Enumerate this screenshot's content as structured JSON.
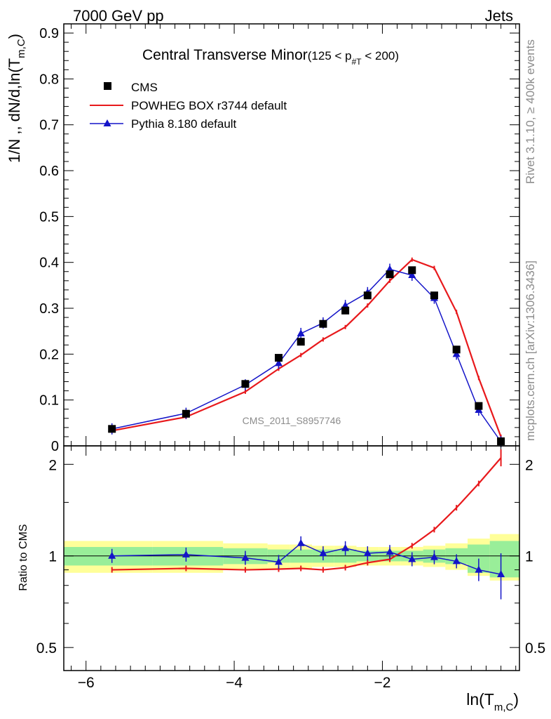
{
  "header": {
    "left": "7000 GeV pp",
    "right": "Jets"
  },
  "side_labels": {
    "rivet": "Rivet 3.1.10, ≥ 400k events",
    "mcplots": "mcplots.cern.ch [arXiv:1306.3436]"
  },
  "watermark": "CMS_2011_S8957746",
  "colors": {
    "cms": "#000000",
    "powheg": "#e8191c",
    "pythia": "#1414c8",
    "band_inner": "#99ee99",
    "band_outer": "#ffff99"
  },
  "chart_data": [
    {
      "type": "line",
      "panel": "main",
      "title": "Central Transverse Minor",
      "title_sub": "(125 < p",
      "title_sub_sub": "#T",
      "title_sub_end": " < 200)",
      "ylabel": "1/N ,, dN/d,ln(T",
      "ylabel_sub": "m,C",
      "ylabel_end": ")",
      "xlim": [
        -6.3,
        -0.15
      ],
      "ylim": [
        0,
        0.92
      ],
      "yticks": [
        "0",
        "0.1",
        "0.2",
        "0.3",
        "0.4",
        "0.5",
        "0.6",
        "0.7",
        "0.8",
        "0.9"
      ],
      "legend_position": "top-left",
      "x": [
        -5.65,
        -4.65,
        -3.85,
        -3.4,
        -3.1,
        -2.8,
        -2.5,
        -2.2,
        -1.9,
        -1.6,
        -1.3,
        -1.0,
        -0.7,
        -0.4
      ],
      "series": [
        {
          "name": "CMS",
          "marker": "square",
          "values": [
            0.037,
            0.07,
            0.135,
            0.192,
            0.227,
            0.266,
            0.295,
            0.328,
            0.374,
            0.383,
            0.328,
            0.21,
            0.087,
            0.01
          ]
        },
        {
          "name": "POWHEG BOX r3744 default",
          "marker": "line",
          "values": [
            0.033,
            0.063,
            0.118,
            0.168,
            0.198,
            0.232,
            0.259,
            0.306,
            0.36,
            0.406,
            0.388,
            0.292,
            0.148,
            0.02
          ]
        },
        {
          "name": "Pythia 8.180 default",
          "marker": "triangle",
          "values": [
            0.037,
            0.071,
            0.133,
            0.18,
            0.245,
            0.268,
            0.306,
            0.334,
            0.385,
            0.372,
            0.322,
            0.2,
            0.078,
            0.009
          ]
        }
      ]
    },
    {
      "type": "line",
      "panel": "ratio",
      "ylabel": "Ratio to CMS",
      "xlabel": "ln(T",
      "xlabel_sub": "m,C",
      "xlabel_end": ")",
      "xlim": [
        -6.3,
        -0.15
      ],
      "ylim": [
        0.42,
        2.3
      ],
      "ytick_values": [
        0.5,
        1,
        2
      ],
      "yticks": [
        "0.5",
        "1",
        "2"
      ],
      "xtick_values": [
        -6,
        -4,
        -2
      ],
      "xticks": [
        "−6",
        "−4",
        "−2"
      ],
      "x": [
        -5.65,
        -4.65,
        -3.85,
        -3.4,
        -3.1,
        -2.8,
        -2.5,
        -2.2,
        -1.9,
        -1.6,
        -1.3,
        -1.0,
        -0.7,
        -0.4
      ],
      "series": [
        {
          "name": "POWHEG BOX r3744 default",
          "values": [
            0.9,
            0.91,
            0.9,
            0.905,
            0.91,
            0.9,
            0.915,
            0.95,
            0.975,
            1.08,
            1.22,
            1.44,
            1.73,
            2.1
          ]
        },
        {
          "name": "Pythia 8.180 default",
          "values": [
            1.0,
            1.01,
            0.985,
            0.955,
            1.1,
            1.02,
            1.06,
            1.02,
            1.03,
            0.975,
            0.99,
            0.96,
            0.9,
            0.87
          ]
        }
      ],
      "band_edges": [
        -6.3,
        -5.1,
        -4.15,
        -3.55,
        -3.25,
        -2.95,
        -2.65,
        -2.35,
        -2.05,
        -1.75,
        -1.45,
        -1.15,
        -0.85,
        -0.55,
        -0.15
      ],
      "band_inner": [
        [
          0.93,
          1.07
        ],
        [
          0.93,
          1.07
        ],
        [
          0.94,
          1.06
        ],
        [
          0.95,
          1.05
        ],
        [
          0.95,
          1.05
        ],
        [
          0.95,
          1.05
        ],
        [
          0.95,
          1.05
        ],
        [
          0.96,
          1.04
        ],
        [
          0.96,
          1.04
        ],
        [
          0.96,
          1.04
        ],
        [
          0.95,
          1.05
        ],
        [
          0.94,
          1.06
        ],
        [
          0.88,
          1.09
        ],
        [
          0.85,
          1.12
        ]
      ],
      "band_outer": [
        [
          0.88,
          1.12
        ],
        [
          0.88,
          1.12
        ],
        [
          0.9,
          1.1
        ],
        [
          0.91,
          1.09
        ],
        [
          0.91,
          1.09
        ],
        [
          0.92,
          1.08
        ],
        [
          0.92,
          1.08
        ],
        [
          0.93,
          1.07
        ],
        [
          0.93,
          1.07
        ],
        [
          0.93,
          1.07
        ],
        [
          0.92,
          1.08
        ],
        [
          0.9,
          1.1
        ],
        [
          0.86,
          1.14
        ],
        [
          0.83,
          1.18
        ]
      ]
    }
  ]
}
